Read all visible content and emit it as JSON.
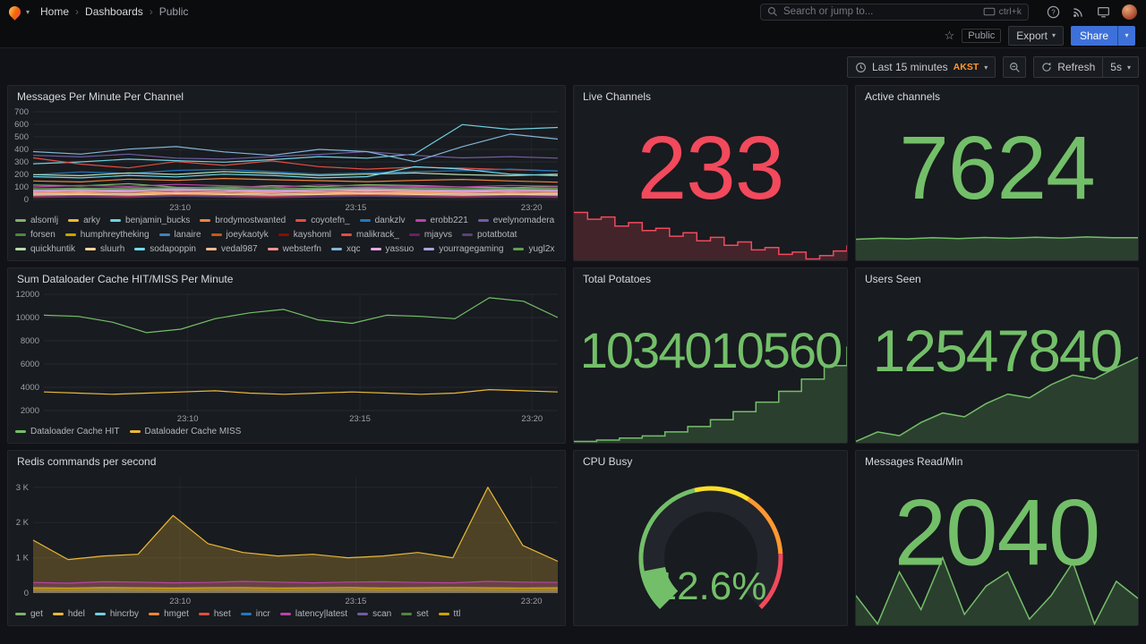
{
  "colors": {
    "primary": "#3D71D9",
    "red": "#F2495C",
    "green": "#73BF69",
    "timezone_orange": "#FF9830"
  },
  "nav": {
    "breadcrumb": [
      "Home",
      "Dashboards",
      "Public"
    ],
    "search_placeholder": "Search or jump to...",
    "shortcut": "ctrl+k"
  },
  "icons": {
    "caret": "▾",
    "star": "☆",
    "sep": "›"
  },
  "actions": {
    "public_tag": "Public",
    "export_label": "Export",
    "share_label": "Share"
  },
  "toolbar": {
    "time_range": "Last 15 minutes",
    "timezone": "AKST",
    "refresh_label": "Refresh",
    "interval": "5s"
  },
  "panels": {
    "messages": {
      "title": "Messages Per Minute Per Channel"
    },
    "live_channels": {
      "title": "Live Channels",
      "value": "233",
      "color": "#F2495C"
    },
    "active_channels": {
      "title": "Active channels",
      "value": "7624",
      "color": "#73BF69"
    },
    "dataloader": {
      "title": "Sum Dataloader Cache HIT/MISS Per Minute"
    },
    "total_potatoes": {
      "title": "Total Potatoes",
      "value": "1034010560",
      "color": "#73BF69"
    },
    "users_seen": {
      "title": "Users Seen",
      "value": "12547840",
      "color": "#73BF69"
    },
    "redis": {
      "title": "Redis commands per second"
    },
    "cpu_busy": {
      "title": "CPU Busy"
    },
    "messages_read": {
      "title": "Messages Read/Min",
      "value": "2040",
      "color": "#73BF69"
    }
  },
  "chart_data": {
    "messages_per_minute": {
      "type": "line",
      "ylim": [
        0,
        700
      ],
      "yticks": [
        {
          "v": 0,
          "label": "0"
        },
        {
          "v": 100,
          "label": "100"
        },
        {
          "v": 200,
          "label": "200"
        },
        {
          "v": 300,
          "label": "300"
        },
        {
          "v": 400,
          "label": "400"
        },
        {
          "v": 500,
          "label": "500"
        },
        {
          "v": 600,
          "label": "600"
        },
        {
          "v": 700,
          "label": "700"
        }
      ],
      "xticks": [
        {
          "f": 0.28,
          "label": "23:10"
        },
        {
          "f": 0.615,
          "label": "23:15"
        },
        {
          "f": 0.95,
          "label": "23:20"
        }
      ],
      "fill_opacity": 0,
      "series": [
        {
          "name": "alsomlj",
          "color": "#7EB26D",
          "values": [
            115,
            108,
            126,
            98,
            92,
            110,
            102,
            118,
            112,
            99,
            94,
            104
          ]
        },
        {
          "name": "arky",
          "color": "#EAB839",
          "values": [
            62,
            70,
            66,
            80,
            72,
            60,
            76,
            70,
            64,
            58,
            72,
            66
          ]
        },
        {
          "name": "benjamin_bucks",
          "color": "#6ED0E0",
          "values": [
            285,
            300,
            322,
            310,
            298,
            318,
            342,
            330,
            362,
            598,
            560,
            575
          ]
        },
        {
          "name": "brodymostwanted",
          "color": "#EF843C",
          "values": [
            148,
            140,
            162,
            152,
            168,
            158,
            150,
            142,
            152,
            160,
            148,
            138
          ]
        },
        {
          "name": "coyotefn_",
          "color": "#E24D42",
          "values": [
            332,
            282,
            252,
            302,
            272,
            308,
            262,
            242,
            258,
            250,
            238,
            228
          ]
        },
        {
          "name": "dankzlv",
          "color": "#1F78C1",
          "values": [
            198,
            220,
            208,
            232,
            240,
            222,
            202,
            212,
            222,
            230,
            242,
            228
          ]
        },
        {
          "name": "erobb221",
          "color": "#BA43A9",
          "values": [
            100,
            112,
            104,
            120,
            110,
            98,
            116,
            108,
            104,
            100,
            112,
            106
          ]
        },
        {
          "name": "evelynomadera",
          "color": "#705DA0",
          "values": [
            352,
            340,
            362,
            330,
            322,
            342,
            360,
            382,
            352,
            332,
            342,
            330
          ]
        },
        {
          "name": "forsen",
          "color": "#508642",
          "values": [
            88,
            84,
            96,
            90,
            102,
            94,
            86,
            92,
            96,
            88,
            84,
            92
          ]
        },
        {
          "name": "humphreytheking",
          "color": "#CCA300",
          "values": [
            50,
            56,
            60,
            48,
            44,
            56,
            62,
            50,
            56,
            48,
            44,
            52
          ]
        },
        {
          "name": "lanaire",
          "color": "#447EBC",
          "values": [
            40,
            46,
            40,
            52,
            46,
            38,
            46,
            52,
            44,
            40,
            46,
            42
          ]
        },
        {
          "name": "joeykaotyk",
          "color": "#C15C17",
          "values": [
            70,
            76,
            70,
            82,
            74,
            68,
            76,
            82,
            74,
            70,
            76,
            72
          ]
        },
        {
          "name": "kayshoml",
          "color": "#890F02",
          "values": [
            30,
            36,
            30,
            42,
            34,
            28,
            36,
            42,
            34,
            30,
            36,
            32
          ]
        },
        {
          "name": "malikrack_",
          "color": "#E24D42",
          "values": [
            24,
            30,
            26,
            36,
            30,
            24,
            30,
            36,
            30,
            26,
            30,
            26
          ]
        },
        {
          "name": "mjayvs",
          "color": "#6D1F62",
          "values": [
            20,
            26,
            20,
            30,
            24,
            18,
            26,
            30,
            24,
            20,
            26,
            22
          ]
        },
        {
          "name": "potatbotat",
          "color": "#584477",
          "values": [
            16,
            20,
            16,
            26,
            20,
            14,
            20,
            26,
            20,
            16,
            20,
            16
          ]
        },
        {
          "name": "quickhuntik",
          "color": "#B7DBAB",
          "values": [
            198,
            190,
            212,
            200,
            222,
            210,
            192,
            202,
            212,
            198,
            190,
            202
          ]
        },
        {
          "name": "sluurh",
          "color": "#F4D598",
          "values": [
            34,
            40,
            36,
            46,
            40,
            34,
            40,
            46,
            40,
            34,
            40,
            36
          ]
        },
        {
          "name": "sodapoppin",
          "color": "#70DBED",
          "values": [
            182,
            172,
            192,
            180,
            202,
            192,
            172,
            182,
            262,
            242,
            202,
            190
          ]
        },
        {
          "name": "vedal987",
          "color": "#F9BA8F",
          "values": [
            44,
            50,
            46,
            56,
            50,
            44,
            50,
            56,
            50,
            44,
            50,
            46
          ]
        },
        {
          "name": "websterfn",
          "color": "#F29191",
          "values": [
            54,
            60,
            56,
            66,
            60,
            54,
            60,
            66,
            60,
            54,
            60,
            56
          ]
        },
        {
          "name": "xqc",
          "color": "#82B5D8",
          "values": [
            382,
            362,
            402,
            422,
            380,
            352,
            400,
            382,
            302,
            422,
            522,
            482
          ]
        },
        {
          "name": "yassuo",
          "color": "#E5A8E2",
          "values": [
            64,
            70,
            66,
            76,
            70,
            64,
            70,
            76,
            70,
            64,
            70,
            66
          ]
        },
        {
          "name": "yourragegaming",
          "color": "#AEA2E0",
          "values": [
            74,
            80,
            76,
            86,
            80,
            74,
            80,
            86,
            80,
            74,
            80,
            76
          ]
        },
        {
          "name": "yugl2x",
          "color": "#629E51",
          "values": [
            84,
            90,
            86,
            96,
            90,
            84,
            90,
            96,
            90,
            84,
            90,
            86
          ]
        }
      ]
    },
    "dataloader_cache": {
      "type": "line",
      "ylim": [
        2000,
        12000
      ],
      "yticks": [
        {
          "v": 2000,
          "label": "2000"
        },
        {
          "v": 4000,
          "label": "4000"
        },
        {
          "v": 6000,
          "label": "6000"
        },
        {
          "v": 8000,
          "label": "8000"
        },
        {
          "v": 10000,
          "label": "10000"
        },
        {
          "v": 12000,
          "label": "12000"
        }
      ],
      "xticks": [
        {
          "f": 0.28,
          "label": "23:10"
        },
        {
          "f": 0.615,
          "label": "23:15"
        },
        {
          "f": 0.95,
          "label": "23:20"
        }
      ],
      "fill_opacity": 0,
      "series": [
        {
          "name": "Dataloader Cache HIT",
          "color": "#73BF69",
          "values": [
            10200,
            10100,
            9600,
            8700,
            9000,
            9900,
            10400,
            10700,
            9800,
            9500,
            10200,
            10100,
            9900,
            11700,
            11400,
            10000
          ]
        },
        {
          "name": "Dataloader Cache MISS",
          "color": "#EAB839",
          "values": [
            3600,
            3500,
            3400,
            3500,
            3600,
            3700,
            3500,
            3400,
            3500,
            3600,
            3500,
            3400,
            3500,
            3800,
            3700,
            3600
          ]
        }
      ]
    },
    "redis_commands": {
      "type": "line",
      "ylim": [
        0,
        3300
      ],
      "yticks": [
        {
          "v": 0,
          "label": "0"
        },
        {
          "v": 1000,
          "label": "1 K"
        },
        {
          "v": 2000,
          "label": "2 K"
        },
        {
          "v": 3000,
          "label": "3 K"
        }
      ],
      "xticks": [
        {
          "f": 0.28,
          "label": "23:10"
        },
        {
          "f": 0.615,
          "label": "23:15"
        },
        {
          "f": 0.95,
          "label": "23:20"
        }
      ],
      "fill_opacity": 0.25,
      "series": [
        {
          "name": "get",
          "color": "#7EB26D",
          "values": [
            130,
            120,
            125,
            130,
            120,
            115,
            125,
            130,
            120,
            115,
            120,
            125,
            115,
            120,
            130,
            120
          ]
        },
        {
          "name": "hdel",
          "color": "#EAB839",
          "values": [
            1500,
            950,
            1050,
            1100,
            2200,
            1400,
            1150,
            1050,
            1100,
            1000,
            1050,
            1150,
            1000,
            3000,
            1350,
            900
          ]
        },
        {
          "name": "hincrby",
          "color": "#6ED0E0",
          "values": [
            80,
            75,
            85,
            80,
            75,
            80,
            85,
            75,
            80,
            85,
            75,
            80,
            85,
            80,
            75,
            80
          ]
        },
        {
          "name": "hmget",
          "color": "#EF843C",
          "values": [
            60,
            55,
            65,
            60,
            55,
            60,
            65,
            55,
            60,
            65,
            55,
            60,
            65,
            60,
            55,
            60
          ]
        },
        {
          "name": "hset",
          "color": "#E24D42",
          "values": [
            150,
            140,
            160,
            150,
            145,
            155,
            150,
            140,
            150,
            160,
            145,
            150,
            155,
            150,
            140,
            150
          ]
        },
        {
          "name": "incr",
          "color": "#1F78C1",
          "values": [
            40,
            35,
            45,
            40,
            35,
            40,
            45,
            35,
            40,
            45,
            35,
            40,
            45,
            40,
            35,
            40
          ]
        },
        {
          "name": "latency|latest",
          "color": "#BA43A9",
          "values": [
            300,
            280,
            320,
            310,
            290,
            300,
            330,
            310,
            290,
            310,
            320,
            300,
            290,
            330,
            310,
            300
          ]
        },
        {
          "name": "scan",
          "color": "#705DA0",
          "values": [
            20,
            18,
            22,
            20,
            18,
            20,
            22,
            18,
            20,
            22,
            18,
            20,
            22,
            20,
            18,
            20
          ]
        },
        {
          "name": "set",
          "color": "#508642",
          "values": [
            100,
            95,
            105,
            100,
            95,
            100,
            105,
            95,
            100,
            105,
            95,
            100,
            105,
            100,
            95,
            100
          ]
        },
        {
          "name": "ttl",
          "color": "#CCA300",
          "values": [
            150,
            140,
            155,
            150,
            140,
            150,
            155,
            140,
            150,
            155,
            140,
            150,
            155,
            150,
            140,
            150
          ]
        }
      ]
    },
    "live_channels_spark": {
      "type": "area",
      "stepped": true,
      "color": "#F2495C",
      "fill_opacity": 0.2,
      "values": [
        262,
        256,
        258,
        250,
        253,
        246,
        248,
        241,
        244,
        237,
        240,
        233,
        236,
        229,
        231,
        225,
        227,
        221,
        224,
        228,
        233
      ]
    },
    "active_channels_spark": {
      "type": "area",
      "color": "#73BF69",
      "fill_opacity": 0.22,
      "ymin": 6800,
      "ymax": 7700,
      "values": [
        7560,
        7600,
        7580,
        7620,
        7590,
        7630,
        7600,
        7640,
        7610,
        7650,
        7620,
        7624
      ]
    },
    "total_potatoes_spark": {
      "type": "area",
      "stepped": true,
      "color": "#73BF69",
      "fill_opacity": 0.22,
      "values": [
        1033310000,
        1033320000,
        1033335000,
        1033350000,
        1033380000,
        1033420000,
        1033470000,
        1033530000,
        1033600000,
        1033680000,
        1033770000,
        1033870000,
        1034010560
      ]
    },
    "users_seen_spark": {
      "type": "area",
      "color": "#73BF69",
      "fill_opacity": 0.22,
      "values": [
        12543400,
        12543900,
        12543700,
        12544400,
        12544900,
        12544700,
        12545400,
        12545900,
        12545700,
        12546400,
        12546900,
        12546700,
        12547300,
        12547840
      ]
    },
    "messages_read_spark": {
      "type": "area",
      "color": "#73BF69",
      "fill_opacity": 0.22,
      "values": [
        2100,
        1500,
        2600,
        1800,
        2900,
        1700,
        2300,
        2600,
        1600,
        2100,
        2800,
        1500,
        2400,
        2040
      ]
    },
    "cpu_gauge": {
      "type": "gauge",
      "value": 12.6,
      "display": "12.6%",
      "color": "#73BF69",
      "segments": [
        {
          "to": 0.45,
          "color": "#73BF69"
        },
        {
          "to": 0.62,
          "color": "#FADE2A"
        },
        {
          "to": 0.82,
          "color": "#FF9830"
        },
        {
          "to": 1,
          "color": "#F2495C"
        }
      ]
    }
  }
}
